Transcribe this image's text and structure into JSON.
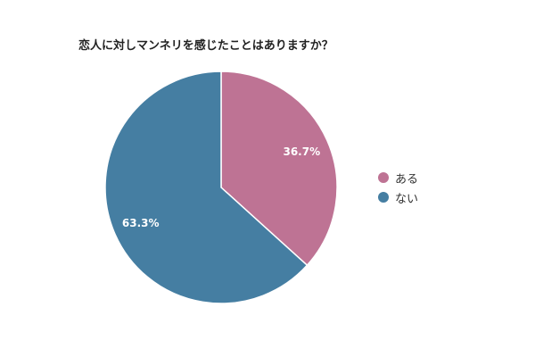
{
  "chart_data": {
    "type": "pie",
    "title": "恋人に対しマンネリを感じたことはありますか？",
    "categories": [
      "ある",
      "ない"
    ],
    "values": [
      36.7,
      63.3
    ],
    "unit": "%",
    "data_labels": [
      "36.7%",
      "63.3%"
    ],
    "colors": [
      "#be7394",
      "#457ea2"
    ],
    "start_angle": "12 o'clock",
    "direction": "clockwise",
    "legend": "right"
  }
}
